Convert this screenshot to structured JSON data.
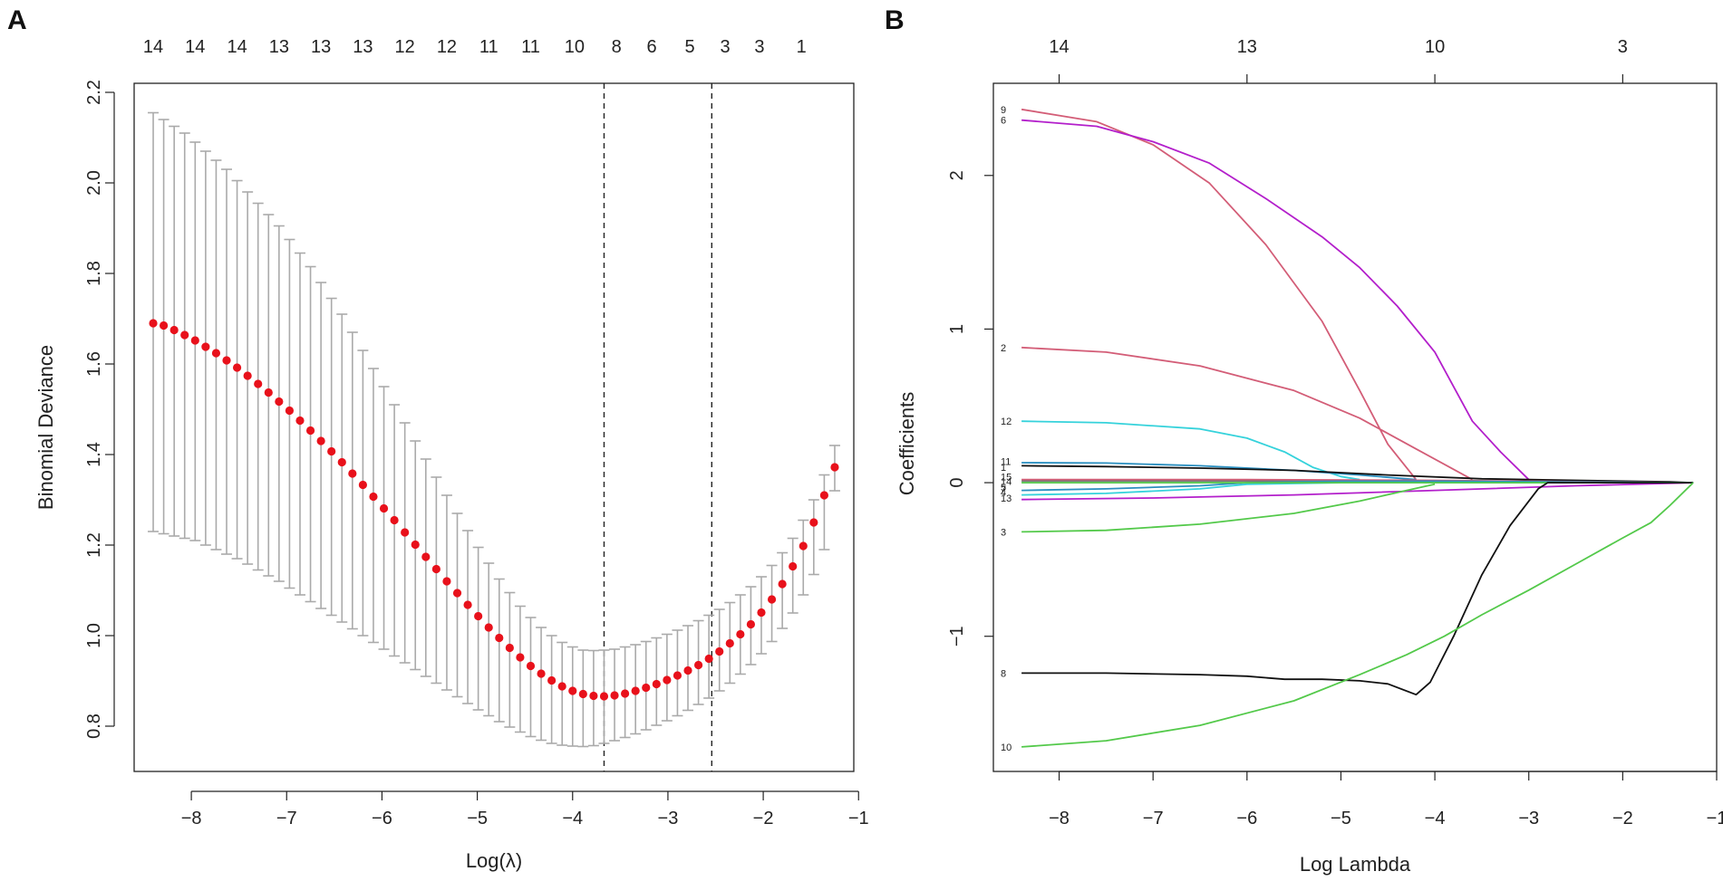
{
  "chart_data": [
    {
      "type": "scatter",
      "panel_label": "A",
      "xlabel": "Log(λ)",
      "ylabel": "Binomial Deviance",
      "xlim": [
        -8.6,
        -1.05
      ],
      "ylim": [
        0.7,
        2.22
      ],
      "xticks": [
        -8,
        -7,
        -6,
        -5,
        -4,
        -3,
        -2,
        -1
      ],
      "xtick_labels": [
        "−8",
        "−7",
        "−6",
        "−5",
        "−4",
        "−3",
        "−2",
        "−1"
      ],
      "yticks": [
        0.8,
        1.0,
        1.2,
        1.4,
        1.6,
        1.8,
        2.0,
        2.2
      ],
      "ytick_labels": [
        "0.8",
        "1.0",
        "1.2",
        "1.4",
        "1.6",
        "1.8",
        "2.0",
        "2.2"
      ],
      "top_axis": {
        "x": [
          -8.4,
          -7.96,
          -7.52,
          -7.08,
          -6.64,
          -6.2,
          -5.76,
          -5.32,
          -4.88,
          -4.44,
          -3.98,
          -3.54,
          -3.17,
          -2.77,
          -2.4,
          -2.04,
          -1.6
        ],
        "labels": [
          "14",
          "14",
          "14",
          "13",
          "13",
          "13",
          "12",
          "12",
          "11",
          "11",
          "10",
          "8",
          "6",
          "5",
          "3",
          "3",
          "1"
        ]
      },
      "vlines": [
        -3.67,
        -2.54
      ],
      "x": [
        -8.4,
        -8.29,
        -8.18,
        -8.07,
        -7.96,
        -7.85,
        -7.74,
        -7.63,
        -7.52,
        -7.41,
        -7.3,
        -7.19,
        -7.08,
        -6.97,
        -6.86,
        -6.75,
        -6.64,
        -6.53,
        -6.42,
        -6.31,
        -6.2,
        -6.09,
        -5.98,
        -5.87,
        -5.76,
        -5.65,
        -5.54,
        -5.43,
        -5.32,
        -5.21,
        -5.1,
        -4.99,
        -4.88,
        -4.77,
        -4.66,
        -4.55,
        -4.44,
        -4.33,
        -4.22,
        -4.11,
        -4.0,
        -3.89,
        -3.78,
        -3.67,
        -3.56,
        -3.45,
        -3.34,
        -3.23,
        -3.12,
        -3.01,
        -2.9,
        -2.79,
        -2.68,
        -2.57,
        -2.46,
        -2.35,
        -2.24,
        -2.13,
        -2.02,
        -1.91,
        -1.8,
        -1.69,
        -1.58,
        -1.47,
        -1.36,
        -1.25
      ],
      "y": [
        1.69,
        1.685,
        1.675,
        1.664,
        1.652,
        1.638,
        1.624,
        1.608,
        1.592,
        1.574,
        1.556,
        1.537,
        1.517,
        1.497,
        1.475,
        1.453,
        1.43,
        1.407,
        1.383,
        1.358,
        1.333,
        1.307,
        1.281,
        1.255,
        1.228,
        1.201,
        1.174,
        1.147,
        1.12,
        1.094,
        1.068,
        1.043,
        1.018,
        0.995,
        0.973,
        0.952,
        0.933,
        0.916,
        0.901,
        0.888,
        0.878,
        0.871,
        0.867,
        0.866,
        0.868,
        0.872,
        0.878,
        0.885,
        0.893,
        0.902,
        0.912,
        0.923,
        0.935,
        0.949,
        0.965,
        0.983,
        1.003,
        1.025,
        1.051,
        1.08,
        1.114,
        1.153,
        1.198,
        1.25,
        1.31,
        1.372
      ],
      "ci_upper": [
        2.155,
        2.14,
        2.125,
        2.11,
        2.09,
        2.07,
        2.05,
        2.03,
        2.005,
        1.98,
        1.955,
        1.93,
        1.905,
        1.875,
        1.845,
        1.815,
        1.78,
        1.745,
        1.71,
        1.67,
        1.63,
        1.59,
        1.55,
        1.51,
        1.47,
        1.43,
        1.39,
        1.35,
        1.31,
        1.27,
        1.232,
        1.195,
        1.16,
        1.125,
        1.095,
        1.065,
        1.04,
        1.018,
        1.0,
        0.985,
        0.975,
        0.968,
        0.967,
        0.968,
        0.97,
        0.975,
        0.98,
        0.987,
        0.995,
        1.003,
        1.012,
        1.022,
        1.033,
        1.045,
        1.058,
        1.073,
        1.09,
        1.108,
        1.13,
        1.155,
        1.183,
        1.215,
        1.255,
        1.3,
        1.355,
        1.42
      ],
      "ci_lower": [
        1.23,
        1.225,
        1.22,
        1.215,
        1.21,
        1.2,
        1.19,
        1.18,
        1.17,
        1.158,
        1.145,
        1.132,
        1.12,
        1.105,
        1.09,
        1.075,
        1.06,
        1.045,
        1.03,
        1.015,
        1.0,
        0.985,
        0.97,
        0.955,
        0.94,
        0.925,
        0.91,
        0.895,
        0.88,
        0.865,
        0.85,
        0.836,
        0.823,
        0.81,
        0.798,
        0.787,
        0.777,
        0.769,
        0.762,
        0.758,
        0.756,
        0.755,
        0.757,
        0.762,
        0.768,
        0.775,
        0.783,
        0.792,
        0.802,
        0.812,
        0.823,
        0.835,
        0.848,
        0.862,
        0.878,
        0.895,
        0.915,
        0.936,
        0.96,
        0.987,
        1.016,
        1.05,
        1.09,
        1.135,
        1.19,
        1.32
      ],
      "point_color": "#e8111b",
      "errorbar_color": "#aaaaaa"
    },
    {
      "type": "line",
      "panel_label": "B",
      "xlabel": "Log Lambda",
      "ylabel": "Coefficients",
      "xlim": [
        -8.7,
        -1.0
      ],
      "ylim": [
        -1.88,
        2.6
      ],
      "xticks": [
        -8,
        -7,
        -6,
        -5,
        -4,
        -3,
        -2,
        -1
      ],
      "xtick_labels": [
        "−8",
        "−7",
        "−6",
        "−5",
        "−4",
        "−3",
        "−2",
        "−1"
      ],
      "yticks": [
        -1,
        0,
        1,
        2
      ],
      "ytick_labels": [
        "−1",
        "0",
        "1",
        "2"
      ],
      "top_axis": {
        "x": [
          -8,
          -6,
          -4,
          -2
        ],
        "labels": [
          "14",
          "13",
          "10",
          "3"
        ]
      },
      "series": [
        {
          "name": "9",
          "color": "#d35d77",
          "x": [
            -8.4,
            -7.6,
            -7.0,
            -6.4,
            -5.8,
            -5.2,
            -4.8,
            -4.5,
            -4.2
          ],
          "y": [
            2.43,
            2.35,
            2.2,
            1.95,
            1.55,
            1.05,
            0.6,
            0.25,
            0.02
          ]
        },
        {
          "name": "6",
          "color": "#b31fcb",
          "x": [
            -8.4,
            -7.6,
            -7.0,
            -6.4,
            -5.8,
            -5.2,
            -4.8,
            -4.4,
            -4.0,
            -3.6,
            -3.3,
            -3.0
          ],
          "y": [
            2.36,
            2.32,
            2.22,
            2.08,
            1.85,
            1.6,
            1.4,
            1.15,
            0.85,
            0.4,
            0.2,
            0.02
          ]
        },
        {
          "name": "2",
          "color": "#d35d77",
          "x": [
            -8.4,
            -7.5,
            -6.5,
            -5.5,
            -4.8,
            -4.2,
            -3.6
          ],
          "y": [
            0.88,
            0.85,
            0.76,
            0.6,
            0.42,
            0.22,
            0.02
          ]
        },
        {
          "name": "12",
          "color": "#35d2db",
          "x": [
            -8.4,
            -7.5,
            -6.5,
            -6.0,
            -5.6,
            -5.3,
            -5.0,
            -4.8
          ],
          "y": [
            0.4,
            0.39,
            0.35,
            0.29,
            0.2,
            0.1,
            0.04,
            0.02
          ]
        },
        {
          "name": "11",
          "color": "#2a8fc0",
          "x": [
            -8.4,
            -7.5,
            -6.5,
            -5.5,
            -4.8,
            -4.2
          ],
          "y": [
            0.13,
            0.128,
            0.11,
            0.08,
            0.05,
            0.02
          ]
        },
        {
          "name": "1",
          "color": "#111111",
          "x": [
            -8.4,
            -7.5,
            -6.5,
            -5.5,
            -4.5,
            -3.5,
            -2.5,
            -1.5,
            -1.25
          ],
          "y": [
            0.11,
            0.105,
            0.095,
            0.08,
            0.05,
            0.025,
            0.015,
            0.005,
            0.0
          ]
        },
        {
          "name": "15",
          "color": "#d35d77",
          "x": [
            -8.4,
            -6.0,
            -4.0,
            -1.25
          ],
          "y": [
            0.02,
            0.02,
            0.015,
            0.0
          ]
        },
        {
          "name": "14",
          "color": "#777777",
          "x": [
            -8.4,
            -6.0,
            -4.0,
            -1.25
          ],
          "y": [
            0.01,
            0.01,
            0.008,
            0.0
          ]
        },
        {
          "name": "5",
          "color": "#2a8fc0",
          "x": [
            -8.4,
            -7.5,
            -6.5,
            -6.0,
            -5.0,
            -4.0,
            -1.25
          ],
          "y": [
            -0.05,
            -0.04,
            -0.02,
            0.0,
            0.01,
            0.01,
            0.0
          ]
        },
        {
          "name": "4",
          "color": "#35d2db",
          "x": [
            -8.4,
            -7.5,
            -6.5,
            -6.0,
            -5.0,
            -4.0,
            -1.25
          ],
          "y": [
            -0.08,
            -0.07,
            -0.04,
            -0.01,
            0.0,
            0.0,
            0.0
          ]
        },
        {
          "name": "13",
          "color": "#b31fcb",
          "x": [
            -8.4,
            -7.0,
            -5.5,
            -4.0,
            -2.5,
            -1.25
          ],
          "y": [
            -0.11,
            -0.1,
            -0.08,
            -0.05,
            -0.02,
            0.0
          ]
        },
        {
          "name": "3",
          "color": "#53c94a",
          "x": [
            -8.4,
            -7.5,
            -6.5,
            -5.5,
            -4.8,
            -4.3,
            -4.0
          ],
          "y": [
            -0.32,
            -0.31,
            -0.27,
            -0.2,
            -0.12,
            -0.05,
            -0.01
          ]
        },
        {
          "name": "7",
          "color": "#53c94a",
          "x": [
            -8.4,
            -6.0,
            -3.0,
            -1.25
          ],
          "y": [
            0.0,
            0.0,
            0.0,
            0.0
          ]
        },
        {
          "name": "8",
          "color": "#111111",
          "x": [
            -8.4,
            -7.5,
            -6.5,
            -6.0,
            -5.6,
            -5.2,
            -4.8,
            -4.5,
            -4.2,
            -4.05,
            -3.8,
            -3.5,
            -3.2,
            -2.9,
            -2.8,
            -1.25
          ],
          "y": [
            -1.24,
            -1.24,
            -1.25,
            -1.26,
            -1.28,
            -1.28,
            -1.29,
            -1.31,
            -1.38,
            -1.3,
            -1.0,
            -0.6,
            -0.28,
            -0.04,
            0.0,
            0.0
          ]
        },
        {
          "name": "10",
          "color": "#53c94a",
          "x": [
            -8.4,
            -7.5,
            -6.5,
            -5.5,
            -4.8,
            -4.3,
            -3.9,
            -3.5,
            -3.0,
            -2.5,
            -2.0,
            -1.7,
            -1.5,
            -1.25
          ],
          "y": [
            -1.72,
            -1.68,
            -1.58,
            -1.42,
            -1.25,
            -1.12,
            -1.0,
            -0.86,
            -0.7,
            -0.53,
            -0.36,
            -0.26,
            -0.15,
            0.0
          ]
        }
      ],
      "line_labels": [
        {
          "text": "9",
          "y": 2.43
        },
        {
          "text": "6",
          "y": 2.36
        },
        {
          "text": "2",
          "y": 0.88
        },
        {
          "text": "12",
          "y": 0.4
        },
        {
          "text": "11",
          "y": 0.14
        },
        {
          "text": "1",
          "y": 0.1
        },
        {
          "text": "15",
          "y": 0.04
        },
        {
          "text": "14",
          "y": 0.01
        },
        {
          "text": "5",
          "y": -0.03
        },
        {
          "text": "4",
          "y": -0.06
        },
        {
          "text": "7",
          "y": -0.04
        },
        {
          "text": "13",
          "y": -0.1
        },
        {
          "text": "3",
          "y": -0.32
        },
        {
          "text": "8",
          "y": -1.24
        },
        {
          "text": "10",
          "y": -1.72
        }
      ]
    }
  ]
}
